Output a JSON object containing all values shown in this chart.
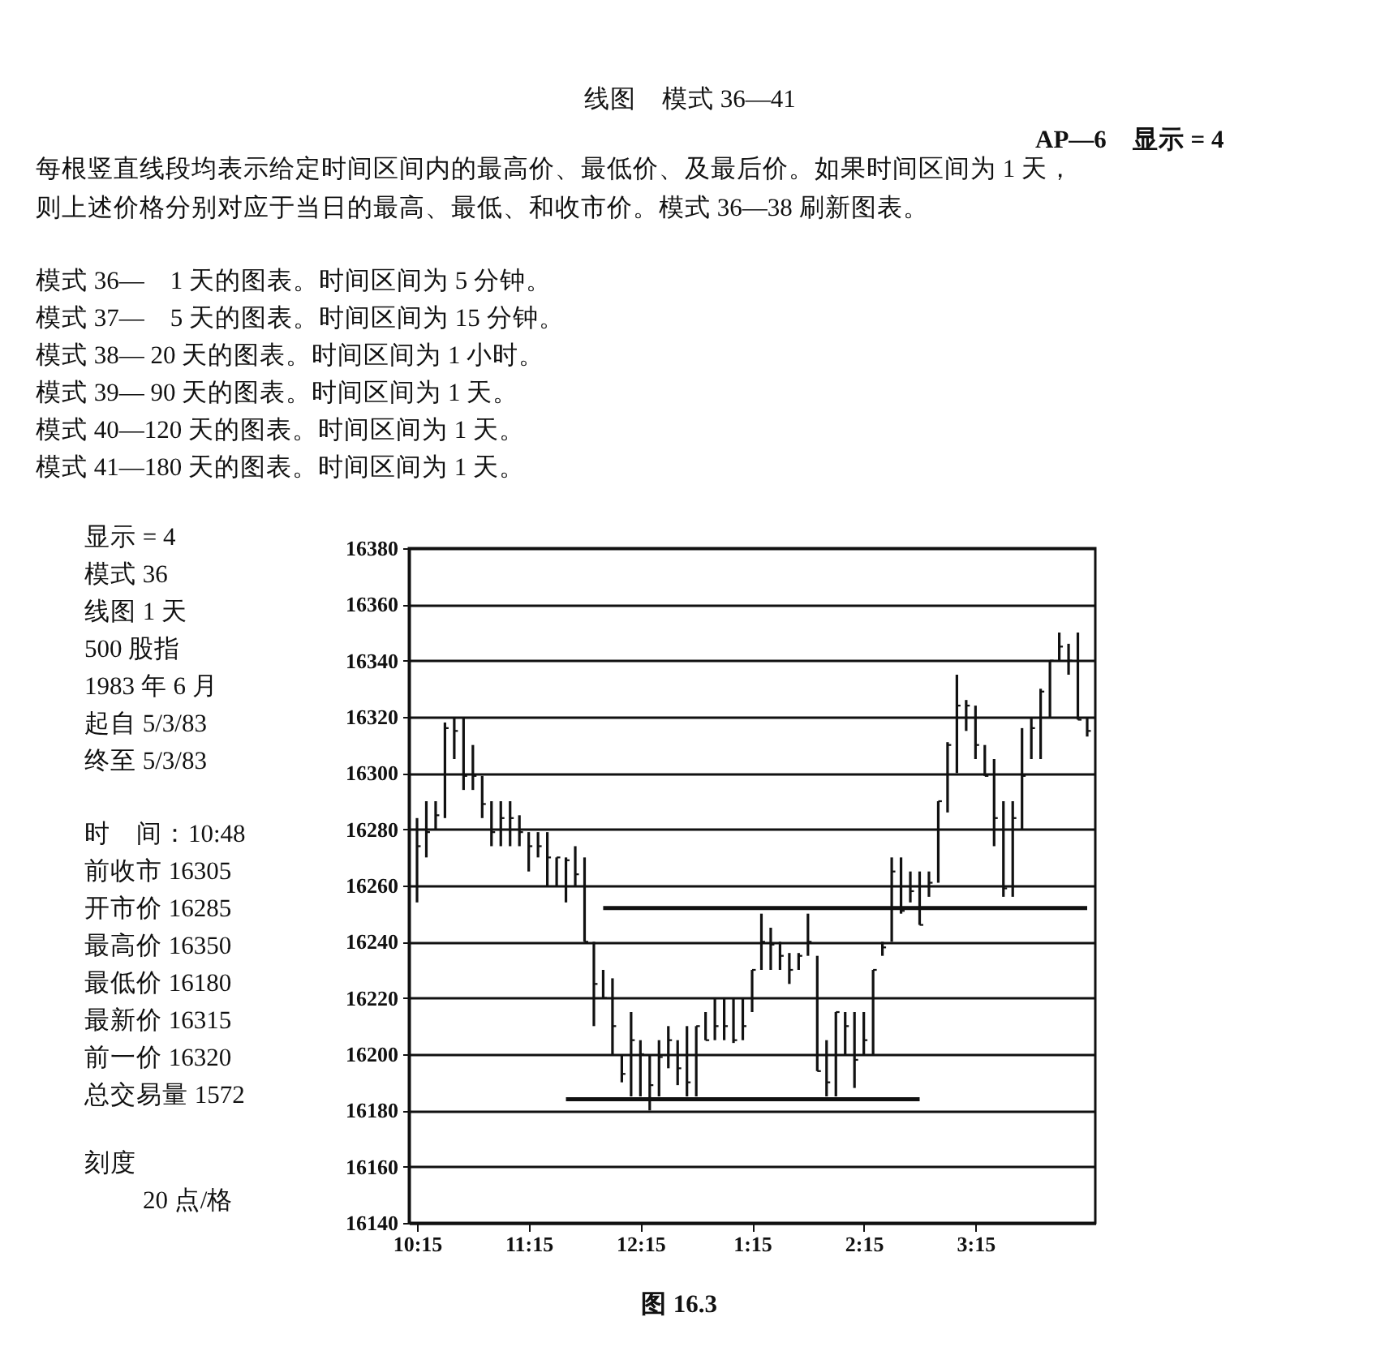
{
  "chart_data": {
    "type": "bar",
    "title": "线图　模式 36—41",
    "subtitle": "AP—6　显示 = 4",
    "annotations": [
      "每根竖直线段均表示给定时间区间内的最高价、最低价、及最后价。如果时间区间为 1 天，",
      "则上述价格分别对应于当日的最高、最低、和收市价。模式 36—38 刷新图表。",
      "模式 36—　1 天的图表。时间区间为 5 分钟。",
      "模式 37—　5 天的图表。时间区间为 15 分钟。",
      "模式 38— 20 天的图表。时间区间为 1 小时。",
      "模式 39— 90 天的图表。时间区间为 1 天。",
      "模式 40—120 天的图表。时间区间为 1 天。",
      "模式 41—180 天的图表。时间区间为 1 天。",
      "显示 = 4",
      "模式 36",
      "线图 1 天",
      "500 股指",
      "1983 年 6 月",
      "起自 5/3/83",
      "终至 5/3/83",
      "时　间：10:48",
      "前收市 16305",
      "开市价 16285",
      "最高价 16350",
      "最低价 16180",
      "最新价 16315",
      "前一价 16320",
      "总交易量 1572",
      "刻度",
      "20 点/格",
      "图 16.3"
    ],
    "x": [
      "1983-05-03T10:15",
      "1983-05-03T10:20",
      "1983-05-03T10:25",
      "1983-05-03T10:30",
      "1983-05-03T10:35",
      "1983-05-03T10:40",
      "1983-05-03T10:45",
      "1983-05-03T10:50",
      "1983-05-03T10:55",
      "1983-05-03T11:00",
      "1983-05-03T11:05",
      "1983-05-03T11:10",
      "1983-05-03T11:15",
      "1983-05-03T11:20",
      "1983-05-03T11:25",
      "1983-05-03T11:30",
      "1983-05-03T11:35",
      "1983-05-03T11:40",
      "1983-05-03T11:45",
      "1983-05-03T11:50",
      "1983-05-03T11:55",
      "1983-05-03T12:00",
      "1983-05-03T12:05",
      "1983-05-03T12:10",
      "1983-05-03T12:15",
      "1983-05-03T12:20",
      "1983-05-03T12:25",
      "1983-05-03T12:30",
      "1983-05-03T12:35",
      "1983-05-03T12:40",
      "1983-05-03T12:45",
      "1983-05-03T12:50",
      "1983-05-03T12:55",
      "1983-05-03T13:00",
      "1983-05-03T13:05",
      "1983-05-03T13:10",
      "1983-05-03T13:15",
      "1983-05-03T13:20",
      "1983-05-03T13:25",
      "1983-05-03T13:30",
      "1983-05-03T13:35",
      "1983-05-03T13:40",
      "1983-05-03T13:45",
      "1983-05-03T13:50",
      "1983-05-03T13:55",
      "1983-05-03T14:00",
      "1983-05-03T14:05",
      "1983-05-03T14:10",
      "1983-05-03T14:15",
      "1983-05-03T14:20",
      "1983-05-03T14:25",
      "1983-05-03T14:30",
      "1983-05-03T14:35",
      "1983-05-03T14:40",
      "1983-05-03T14:45",
      "1983-05-03T14:50",
      "1983-05-03T14:55",
      "1983-05-03T15:00",
      "1983-05-03T15:05",
      "1983-05-03T15:10",
      "1983-05-03T15:15",
      "1983-05-03T15:20",
      "1983-05-03T15:25",
      "1983-05-03T15:30",
      "1983-05-03T15:35",
      "1983-05-03T15:40",
      "1983-05-03T15:45",
      "1983-05-03T15:50",
      "1983-05-03T15:55",
      "1983-05-03T16:00",
      "1983-05-03T16:05",
      "1983-05-03T16:10",
      "1983-05-03T16:15"
    ],
    "series": [
      {
        "color": "#111111",
        "base": [
          16254,
          16270,
          16280,
          16284,
          16305,
          16294,
          16294,
          16284,
          16274,
          16274,
          16274,
          16274,
          16265,
          16270,
          16260,
          16260,
          16254,
          16260,
          16240,
          16210,
          16220,
          16200,
          16190,
          16185,
          16185,
          16180,
          16185,
          16195,
          16189,
          16185,
          16185,
          16205,
          16205,
          16205,
          16204,
          16205,
          16215,
          16230,
          16230,
          16230,
          16225,
          16230,
          16235,
          16194,
          16185,
          16185,
          16200,
          16188,
          16200,
          16200,
          16235,
          16240,
          16250,
          16254,
          16246,
          16256,
          16261,
          16286,
          16300,
          16315,
          16305,
          16299,
          16274,
          16256,
          16256,
          16280,
          16305,
          16305,
          16320,
          16340,
          16335,
          16319,
          16313
        ],
        "values": [
          30,
          20,
          10,
          34,
          15,
          26,
          16,
          15,
          16,
          16,
          16,
          11,
          14,
          9,
          19,
          10,
          16,
          14,
          30,
          30,
          10,
          27,
          10,
          30,
          20,
          20,
          20,
          15,
          16,
          25,
          25,
          10,
          15,
          15,
          16,
          15,
          15,
          20,
          15,
          10,
          11,
          6,
          15,
          41,
          20,
          30,
          15,
          27,
          15,
          30,
          5,
          30,
          20,
          11,
          19,
          9,
          29,
          25,
          35,
          11,
          19,
          11,
          31,
          34,
          34,
          36,
          15,
          25,
          20,
          10,
          11,
          31,
          7
        ]
      },
      {
        "type": "scatter",
        "color": "#111111",
        "values": [
          16274,
          16279,
          16285,
          16316,
          16315,
          16299,
          16299,
          16289,
          16279,
          16284,
          16284,
          16279,
          16274,
          16274,
          16270,
          16270,
          16269,
          16264,
          16240,
          16225,
          16220,
          16210,
          16193,
          16205,
          16200,
          16189,
          16199,
          16205,
          16195,
          16190,
          16210,
          16205,
          16210,
          16210,
          16205,
          16210,
          16230,
          16240,
          16239,
          16235,
          16230,
          16235,
          16240,
          16194,
          16190,
          16215,
          16210,
          16198,
          16205,
          16230,
          16238,
          16265,
          16251,
          16258,
          16246,
          16261,
          16290,
          16310,
          16324,
          16324,
          16310,
          16299,
          16284,
          16259,
          16284,
          16299,
          16316,
          16329,
          16340,
          16345,
          16340,
          16319,
          16315
        ]
      },
      {
        "type": "line",
        "color": "#111111",
        "x": [
          "1983-05-03T11:55",
          "1983-05-03T16:15"
        ],
        "values": [
          16252,
          16252
        ],
        "marker": "none"
      },
      {
        "type": "line",
        "color": "#111111",
        "x": [
          "1983-05-03T11:35",
          "1983-05-03T14:45"
        ],
        "values": [
          16184,
          16184
        ],
        "marker": "none"
      }
    ],
    "xlim": [
      "1983-05-03T10:15",
      "1983-05-03T16:15"
    ],
    "xticks": [
      {
        "value": "1983-05-03T10:15",
        "label": "10:15"
      },
      {
        "value": "1983-05-03T11:15",
        "label": "11:15"
      },
      {
        "value": "1983-05-03T12:15",
        "label": "12:15"
      },
      {
        "value": "1983-05-03T13:15",
        "label": "1:15"
      },
      {
        "value": "1983-05-03T14:15",
        "label": "2:15"
      },
      {
        "value": "1983-05-03T15:15",
        "label": "3:15"
      }
    ],
    "ylim": [
      16140,
      16380
    ],
    "yticks": [
      16140,
      16160,
      16180,
      16200,
      16220,
      16240,
      16260,
      16280,
      16300,
      16320,
      16340,
      16360,
      16380
    ],
    "grid": "y",
    "marker": "square"
  }
}
